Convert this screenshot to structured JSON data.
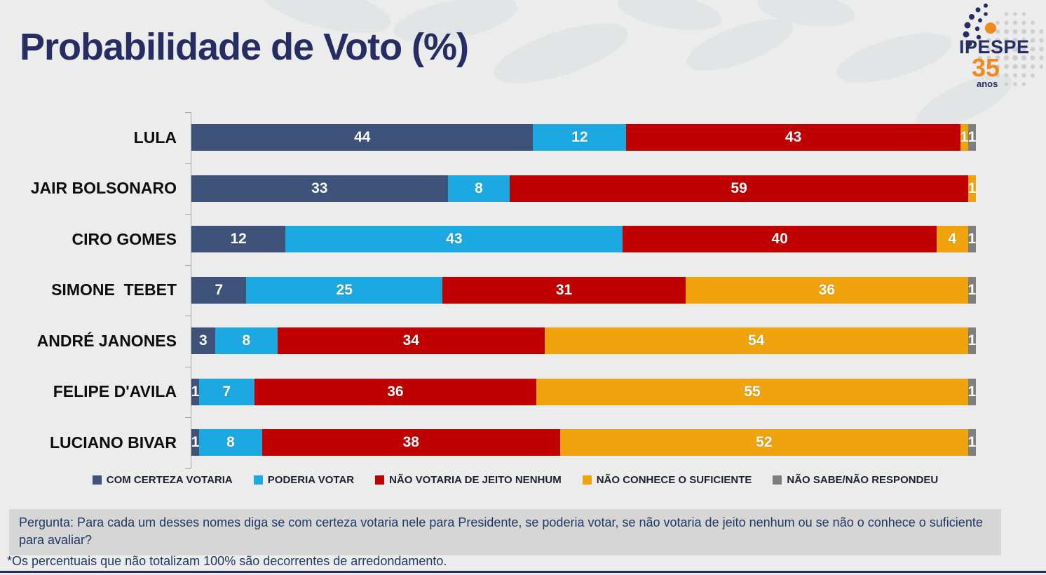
{
  "title": "Probabilidade de Voto (%)",
  "logo": {
    "brand": "IPESPE",
    "years": "35",
    "years_suffix": "anos"
  },
  "chart_data": {
    "type": "bar",
    "orientation": "horizontal-stacked",
    "title": "Probabilidade de Voto (%)",
    "unit": "%",
    "grid": false,
    "legend_position": "bottom",
    "categories": [
      "LULA",
      "JAIR BOLSONARO",
      "CIRO GOMES",
      "SIMONE  TEBET",
      "ANDRÉ JANONES",
      "FELIPE D'AVILA",
      "LUCIANO BIVAR"
    ],
    "series": [
      {
        "name": "COM CERTEZA VOTARIA",
        "color": "#3e527a",
        "values": [
          44,
          33,
          12,
          7,
          3,
          1,
          1
        ]
      },
      {
        "name": "PODERIA VOTAR",
        "color": "#1ca9e1",
        "values": [
          12,
          8,
          43,
          25,
          8,
          7,
          8
        ]
      },
      {
        "name": "NÃO VOTARIA DE JEITO NENHUM",
        "color": "#c00000",
        "values": [
          43,
          59,
          40,
          31,
          34,
          36,
          38
        ]
      },
      {
        "name": "NÃO CONHECE O SUFICIENTE",
        "color": "#f0a30c",
        "values": [
          1,
          1,
          4,
          36,
          54,
          55,
          52
        ]
      },
      {
        "name": "NÃO SABE/NÃO RESPONDEU",
        "color": "#7f7f7f",
        "values": [
          1,
          0,
          1,
          1,
          1,
          1,
          1
        ]
      }
    ]
  },
  "question": "Pergunta:  Para cada um desses nomes diga se com certeza votaria nele para Presidente, se poderia votar, se não votaria de jeito nenhum ou se não o conhece o suficiente para avaliar?",
  "footnote": "*Os percentuais que não totalizam 100% são decorrentes de arredondamento.",
  "colors": {
    "background": "#ececec",
    "title_text": "#262d63",
    "question_box_bg": "#d6d6d6",
    "question_text": "#203864",
    "axis": "#a6a6a6",
    "value_label_text": "#ffffff",
    "logo_orange": "#f08a1e"
  }
}
